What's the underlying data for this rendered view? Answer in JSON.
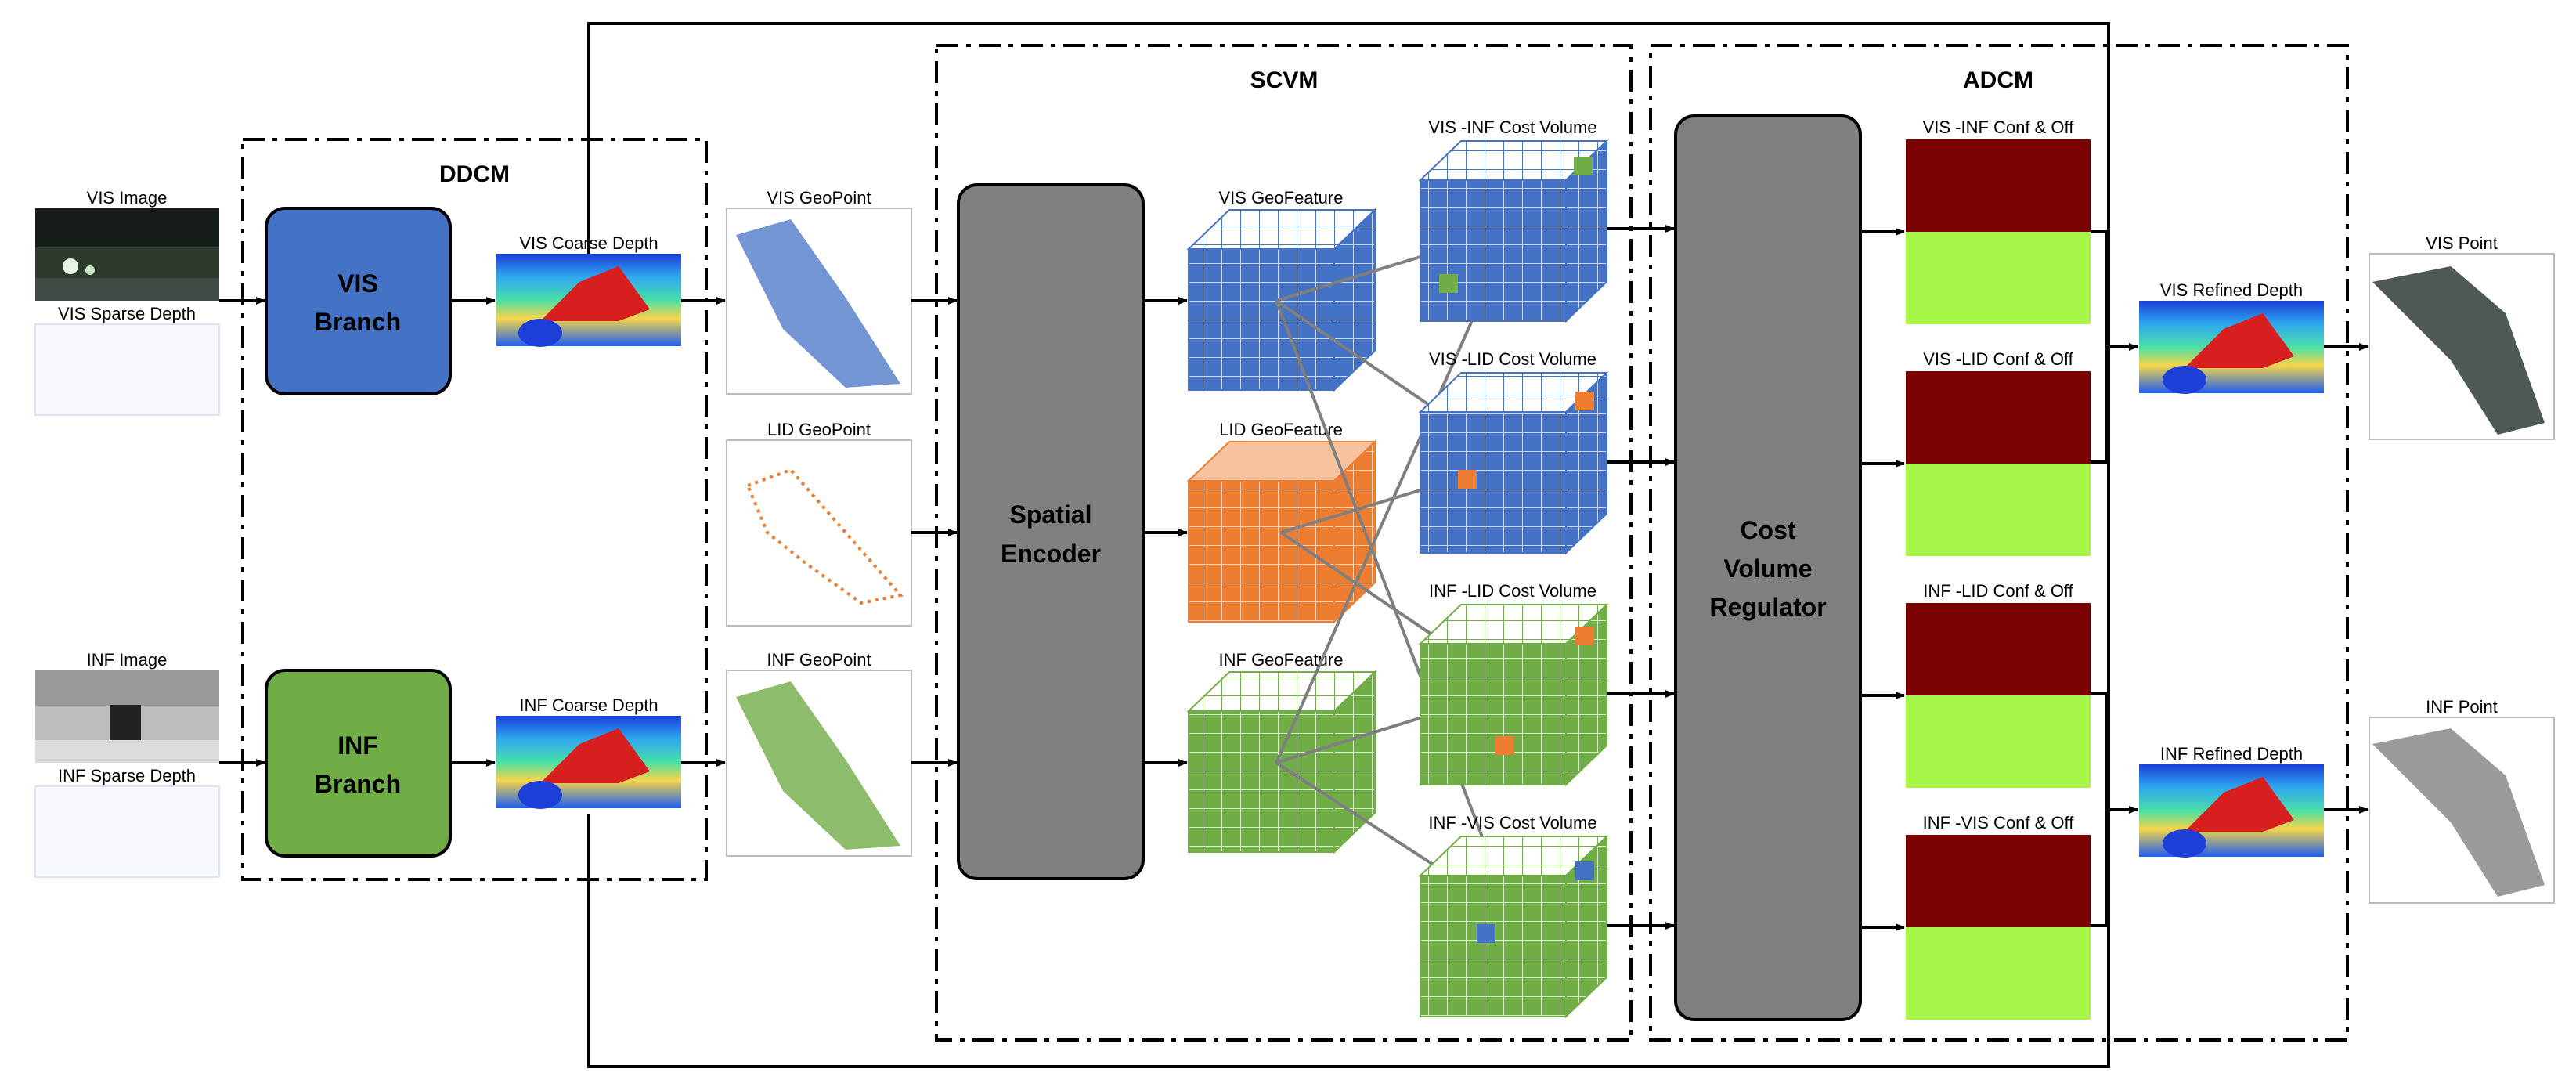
{
  "modules": {
    "ddcm": "DDCM",
    "scvm": "SCVM",
    "adcm": "ADCM"
  },
  "inputs": {
    "vis_image": "VIS Image",
    "vis_sparse_depth": "VIS Sparse Depth",
    "inf_image": "INF Image",
    "inf_sparse_depth": "INF Sparse Depth"
  },
  "branches": {
    "vis": [
      "VIS",
      "Branch"
    ],
    "inf": [
      "INF",
      "Branch"
    ]
  },
  "coarse": {
    "vis": "VIS Coarse Depth",
    "inf": "INF Coarse Depth"
  },
  "geopoints": {
    "vis": "VIS GeoPoint",
    "lid": "LID GeoPoint",
    "inf": "INF GeoPoint"
  },
  "encoder": [
    "Spatial",
    "Encoder"
  ],
  "geofeatures": {
    "vis": "VIS GeoFeature",
    "lid": "LID GeoFeature",
    "inf": "INF GeoFeature"
  },
  "cost_volumes": {
    "vis_inf": "VIS -INF Cost Volume",
    "vis_lid": "VIS -LID Cost Volume",
    "inf_lid": "INF -LID Cost Volume",
    "inf_vis": "INF -VIS Cost Volume"
  },
  "regulator": [
    "Cost",
    "Volume",
    "Regulator"
  ],
  "conf_off": {
    "vis_inf": "VIS -INF Conf & Off",
    "vis_lid": "VIS -LID Conf & Off",
    "inf_lid": "INF -LID Conf & Off",
    "inf_vis": "INF -VIS Conf & Off"
  },
  "refined": {
    "vis": "VIS Refined Depth",
    "inf": "INF Refined Depth"
  },
  "outputs": {
    "vis": "VIS Point",
    "inf": "INF Point"
  },
  "colors": {
    "vis_blue": "#4472C4",
    "inf_green": "#70AD47",
    "lid_orange": "#ED7D31",
    "encoder_gray": "#808080",
    "conf_dark_red": "#7B0000",
    "off_lime": "#A8F54A"
  }
}
